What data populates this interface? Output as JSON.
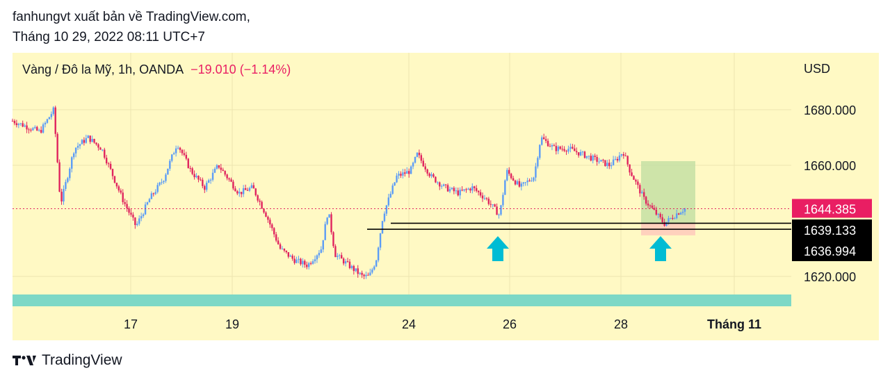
{
  "header": {
    "line1": "fanhungvt xuất bản về TradingView.com,",
    "line2": "Tháng 10 29, 2022 08:11 UTC+7"
  },
  "symbol": {
    "name": "Vàng / Đô la Mỹ, 1h, OANDA",
    "change": "−19.010 (−1.14%)"
  },
  "footer": {
    "brand": "TradingView",
    "logo_icon": "tradingview-logo-icon"
  },
  "colors": {
    "panel_bg": "#fff9c4",
    "up": "#5b9cf6",
    "down": "#e0245e",
    "price_label": "#e91e63",
    "level_label": "#000000",
    "arrow": "#00bcd4",
    "band": "#7dd8c6",
    "target_zone": "#c5e1a5",
    "stop_zone": "#ffccbc"
  },
  "chart_data": {
    "type": "candlestick",
    "title": "Vàng / Đô la Mỹ, 1h, OANDA",
    "currency_label": "USD",
    "ylim": [
      1608,
      1690
    ],
    "y_ticks": [
      {
        "value": 1680,
        "label": "1680.000"
      },
      {
        "value": 1660,
        "label": "1660.000"
      },
      {
        "value": 1620,
        "label": "1620.000"
      }
    ],
    "x_ticks": [
      {
        "label": "17"
      },
      {
        "label": "19"
      },
      {
        "label": "24"
      },
      {
        "label": "26"
      },
      {
        "label": "28"
      },
      {
        "label": "Tháng 11"
      }
    ],
    "price_path": [
      [
        0,
        1676
      ],
      [
        4,
        1672
      ],
      [
        6,
        1680
      ],
      [
        7,
        1646
      ],
      [
        8,
        1656
      ],
      [
        9,
        1666
      ],
      [
        11,
        1670
      ],
      [
        13,
        1666
      ],
      [
        16,
        1648
      ],
      [
        18,
        1638
      ],
      [
        20,
        1648
      ],
      [
        22,
        1655
      ],
      [
        24,
        1668
      ],
      [
        26,
        1658
      ],
      [
        28,
        1652
      ],
      [
        30,
        1660
      ],
      [
        33,
        1650
      ],
      [
        35,
        1652
      ],
      [
        37,
        1642
      ],
      [
        39,
        1630
      ],
      [
        41,
        1626
      ],
      [
        43,
        1624
      ],
      [
        45,
        1630
      ],
      [
        46,
        1644
      ],
      [
        47,
        1628
      ],
      [
        49,
        1624
      ],
      [
        51,
        1620
      ],
      [
        52,
        1620
      ],
      [
        53,
        1626
      ],
      [
        54,
        1642
      ],
      [
        56,
        1656
      ],
      [
        58,
        1658
      ],
      [
        59,
        1664
      ],
      [
        61,
        1656
      ],
      [
        63,
        1652
      ],
      [
        65,
        1650
      ],
      [
        67,
        1652
      ],
      [
        69,
        1648
      ],
      [
        71,
        1642
      ],
      [
        72,
        1658
      ],
      [
        74,
        1652
      ],
      [
        76,
        1656
      ],
      [
        77,
        1670
      ],
      [
        79,
        1666
      ],
      [
        81,
        1666
      ],
      [
        83,
        1664
      ],
      [
        85,
        1662
      ],
      [
        87,
        1660
      ],
      [
        88,
        1662
      ],
      [
        89,
        1665
      ],
      [
        90,
        1658
      ],
      [
        92,
        1648
      ],
      [
        94,
        1642
      ],
      [
        95,
        1639
      ],
      [
        97,
        1643
      ],
      [
        98,
        1644.385
      ]
    ],
    "last_price": {
      "value": 1644.385,
      "label": "1644.385"
    },
    "levels": [
      {
        "value": 1639.133,
        "label": "1639.133"
      },
      {
        "value": 1636.994,
        "label": "1636.994"
      }
    ],
    "target_zone": [
      1639.133,
      1661.5
    ],
    "stop_zone": [
      1634.8,
      1639.133
    ],
    "annotations": [
      {
        "type": "up-arrow",
        "near": "26"
      },
      {
        "type": "up-arrow",
        "near": "28"
      }
    ]
  }
}
